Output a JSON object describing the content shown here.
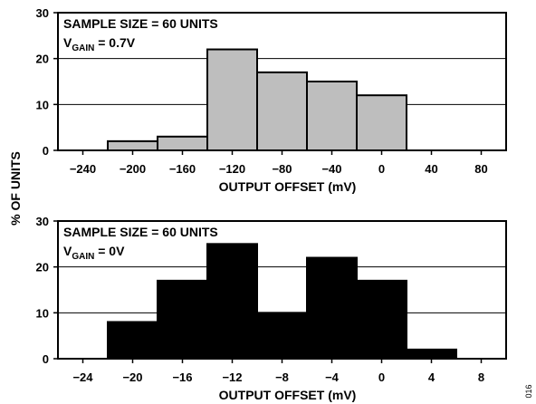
{
  "ylabel": "% OF UNITS",
  "figure_id": "016",
  "chart_data": [
    {
      "type": "bar",
      "subtype": "histogram",
      "annotation_line1": "SAMPLE SIZE = 60 UNITS",
      "annotation_line2_main": "V",
      "annotation_line2_sub": "GAIN",
      "annotation_line2_rest": " = 0.7V",
      "xlabel": "OUTPUT OFFSET (mV)",
      "xlim": [
        -260,
        100
      ],
      "ylim": [
        0,
        30
      ],
      "xticks": [
        -240,
        -200,
        -160,
        -120,
        -80,
        -40,
        0,
        40,
        80
      ],
      "xtick_labels": [
        "−240",
        "−200",
        "−160",
        "−120",
        "−80",
        "−40",
        "0",
        "40",
        "80"
      ],
      "yticks": [
        0,
        10,
        20,
        30
      ],
      "ytick_labels": [
        "0",
        "10",
        "20",
        "30"
      ],
      "grid": "horizontal",
      "bar_color": "#bebebe",
      "bins": [
        {
          "left": -220,
          "right": -180,
          "value": 2
        },
        {
          "left": -180,
          "right": -140,
          "value": 3
        },
        {
          "left": -140,
          "right": -100,
          "value": 22
        },
        {
          "left": -100,
          "right": -60,
          "value": 17
        },
        {
          "left": -60,
          "right": -20,
          "value": 15
        },
        {
          "left": -20,
          "right": 20,
          "value": 12
        }
      ]
    },
    {
      "type": "bar",
      "subtype": "histogram",
      "annotation_line1": "SAMPLE SIZE = 60 UNITS",
      "annotation_line2_main": "V",
      "annotation_line2_sub": "GAIN",
      "annotation_line2_rest": " = 0V",
      "xlabel": "OUTPUT OFFSET (mV)",
      "xlim": [
        -26,
        10
      ],
      "ylim": [
        0,
        30
      ],
      "xticks": [
        -24,
        -20,
        -16,
        -12,
        -8,
        -4,
        0,
        4,
        8
      ],
      "xtick_labels": [
        "−24",
        "−20",
        "−16",
        "−12",
        "−8",
        "−4",
        "0",
        "4",
        "8"
      ],
      "yticks": [
        0,
        10,
        20,
        30
      ],
      "ytick_labels": [
        "0",
        "10",
        "20",
        "30"
      ],
      "grid": "horizontal",
      "bar_color": "#000000",
      "bins": [
        {
          "left": -22,
          "right": -18,
          "value": 8
        },
        {
          "left": -18,
          "right": -14,
          "value": 17
        },
        {
          "left": -14,
          "right": -10,
          "value": 25
        },
        {
          "left": -10,
          "right": -6,
          "value": 10
        },
        {
          "left": -6,
          "right": -2,
          "value": 22
        },
        {
          "left": -2,
          "right": 2,
          "value": 17
        },
        {
          "left": 2,
          "right": 6,
          "value": 2
        }
      ]
    }
  ]
}
